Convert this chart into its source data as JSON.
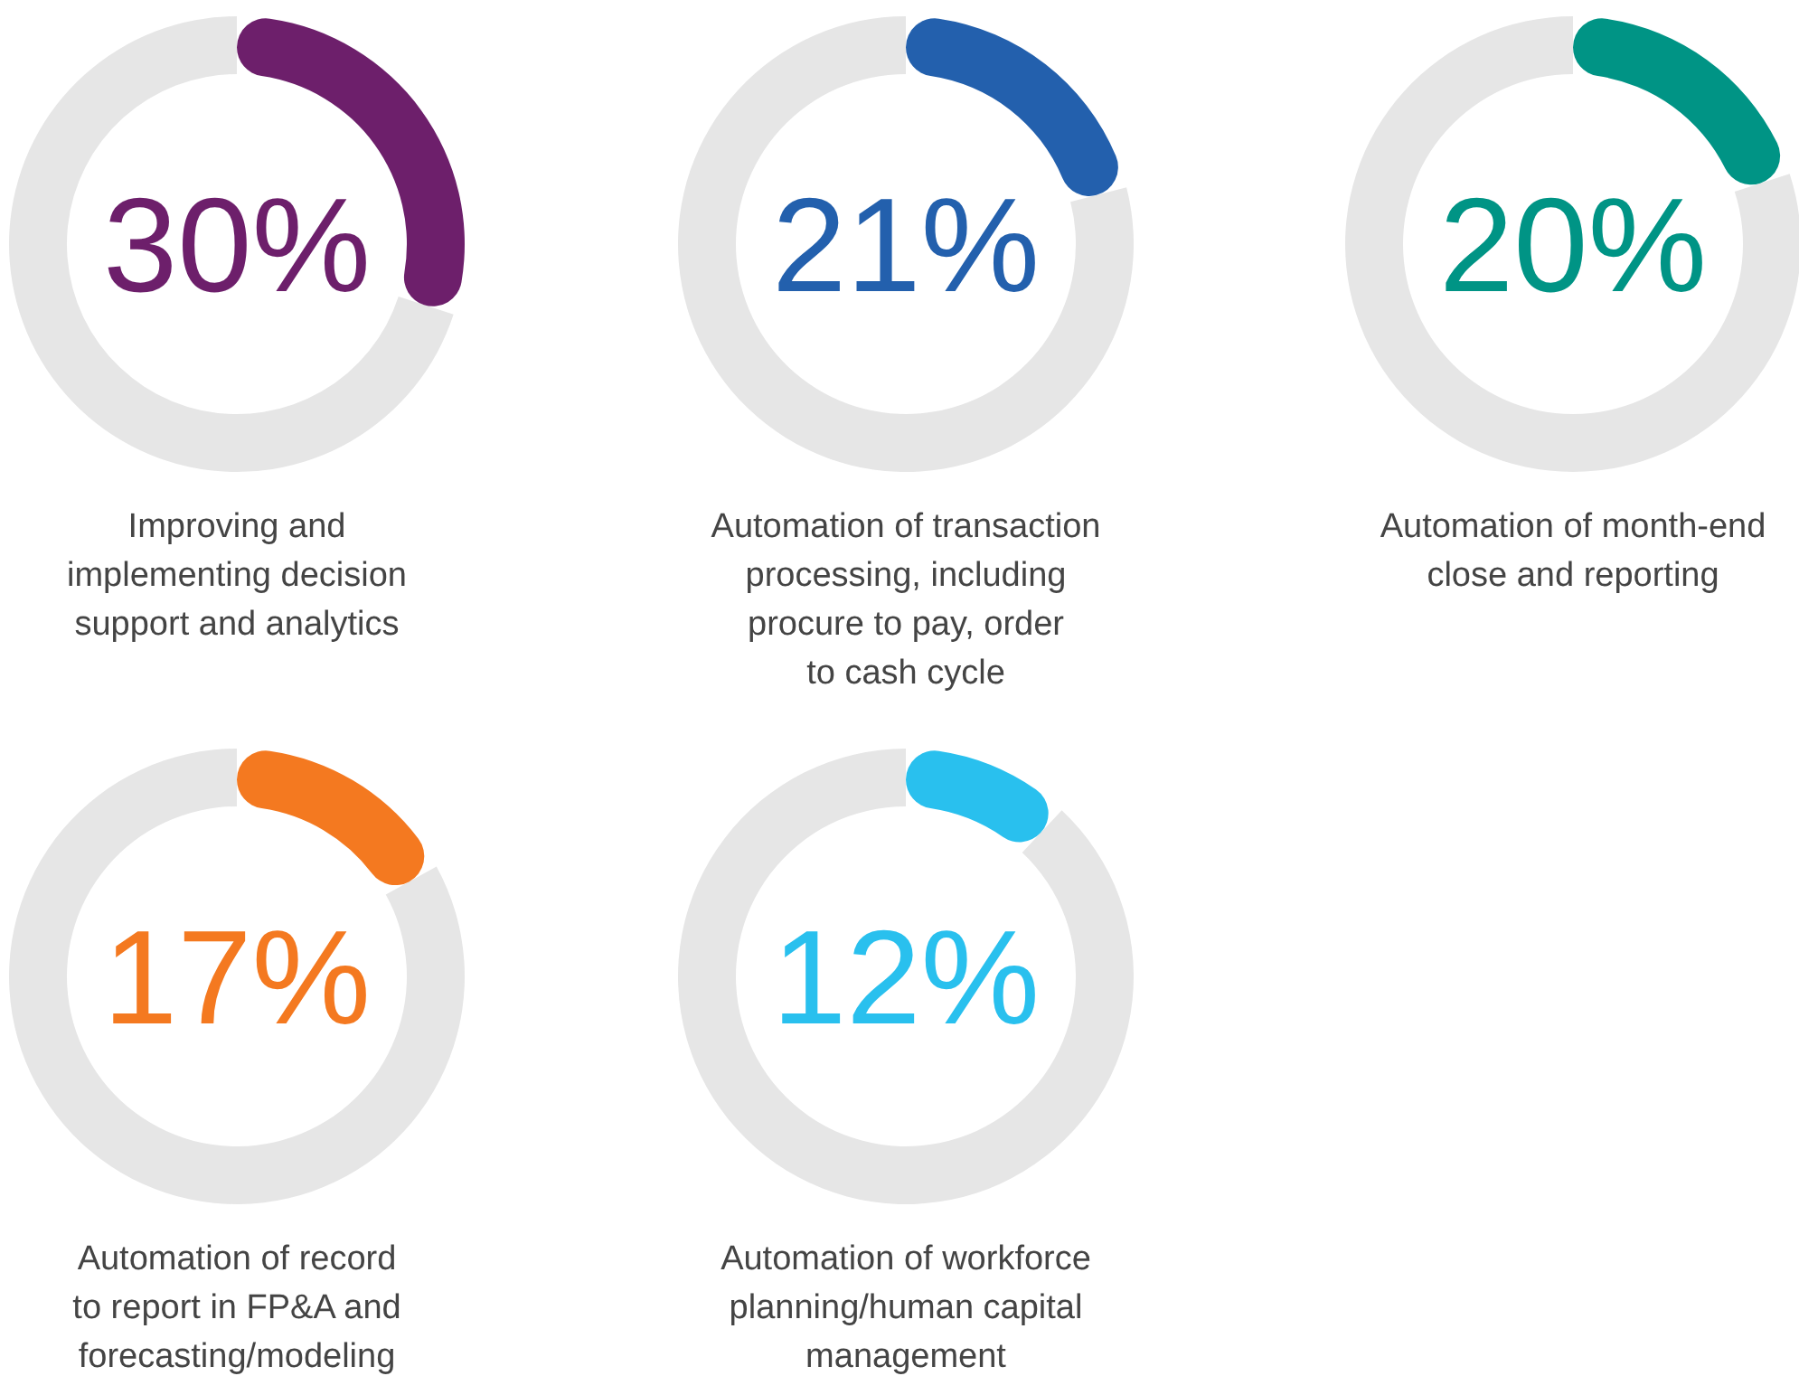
{
  "chart_data": [
    {
      "type": "donut",
      "title": "Improving and\nimplementing decision\nsupport and analytics",
      "categories": [
        null,
        null
      ],
      "values": [
        30,
        70
      ],
      "colors": [
        "#6d1f6b",
        "#e6e6e6"
      ],
      "annotations": [
        "30%"
      ]
    },
    {
      "type": "donut",
      "title": "Automation of transaction\nprocessing, including\nprocure to pay, order\nto cash cycle",
      "categories": [
        null,
        null
      ],
      "values": [
        21,
        79
      ],
      "colors": [
        "#2360ad",
        "#e6e6e6"
      ],
      "annotations": [
        "21%"
      ]
    },
    {
      "type": "donut",
      "title": "Automation of month-end\nclose and reporting",
      "categories": [
        null,
        null
      ],
      "values": [
        20,
        80
      ],
      "colors": [
        "#009485",
        "#e6e6e6"
      ],
      "annotations": [
        "20%"
      ]
    },
    {
      "type": "donut",
      "title": "Automation of record\nto report in FP&A and\nforecasting/modeling",
      "categories": [
        null,
        null
      ],
      "values": [
        17,
        83
      ],
      "colors": [
        "#f47920",
        "#e6e6e6"
      ],
      "annotations": [
        "17%"
      ]
    },
    {
      "type": "donut",
      "title": "Automation of workforce\nplanning/human capital\nmanagement",
      "categories": [
        null,
        null
      ],
      "values": [
        12,
        88
      ],
      "colors": [
        "#29c0ee",
        "#e6e6e6"
      ],
      "annotations": [
        "12%"
      ]
    }
  ]
}
